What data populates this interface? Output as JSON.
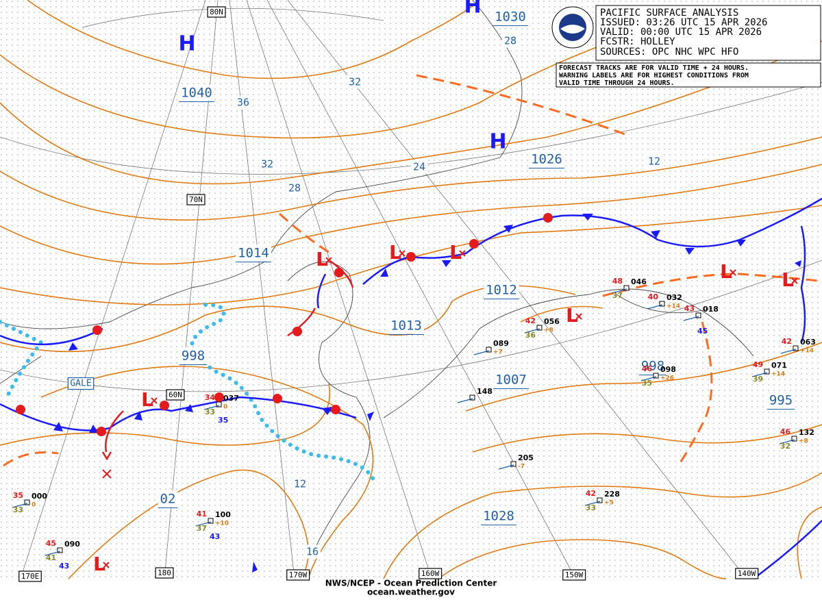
{
  "header": {
    "title": "PACIFIC SURFACE ANALYSIS",
    "issued": "ISSUED: 03:26 UTC 15 APR 2026",
    "valid": "VALID:  00:00 UTC 15 APR 2026",
    "forecaster": "FCSTR:  HOLLEY",
    "sources": "SOURCES: OPC NHC WPC HFO"
  },
  "note": [
    "FORECAST TRACKS ARE FOR VALID TIME + 24 HOURS.",
    "WARNING LABELS ARE FOR HIGHEST CONDITIONS FROM",
    "VALID TIME THROUGH 24 HOURS."
  ],
  "pressure_labels": [
    "1030",
    "1040",
    "1026",
    "1014",
    "1012",
    "1013",
    "998",
    "1007",
    "998",
    "995",
    "02",
    "1028"
  ],
  "highs": [
    "H",
    "H",
    "H"
  ],
  "lows": [
    "L",
    "L",
    "L",
    "L",
    "L",
    "L",
    "L",
    "L"
  ],
  "isobar_labels": [
    "36",
    "32",
    "32",
    "28",
    "24",
    "12",
    "28",
    "12",
    "16"
  ],
  "grid_labels": [
    "80N",
    "70N",
    "60N",
    "170E",
    "180",
    "170W",
    "160W",
    "150W",
    "140W"
  ],
  "warnings": [
    "GALE"
  ],
  "stations": [
    {
      "pressure": "000",
      "temp": "35",
      "dew": "33",
      "tendency": "0"
    },
    {
      "pressure": "090",
      "temp": "45",
      "dew": "41",
      "wind": "43"
    },
    {
      "pressure": "100",
      "temp": "41",
      "dew": "37",
      "tendency": "+10",
      "wind": "43"
    },
    {
      "pressure": "037",
      "temp": "34",
      "dew": "33",
      "tendency": "0",
      "wind": "35"
    },
    {
      "pressure": "056",
      "temp": "42",
      "dew": "36",
      "tendency": "+8"
    },
    {
      "pressure": "089",
      "tendency": "+7"
    },
    {
      "pressure": "148"
    },
    {
      "pressure": "205",
      "tendency": "-7"
    },
    {
      "pressure": "228",
      "temp": "42",
      "dew": "33",
      "tendency": "+5"
    },
    {
      "pressure": "098",
      "temp": "46",
      "dew": "35",
      "tendency": "+26"
    },
    {
      "pressure": "071",
      "temp": "49",
      "dew": "39",
      "tendency": "+14"
    },
    {
      "pressure": "132",
      "temp": "46",
      "dew": "32",
      "tendency": "+8"
    },
    {
      "pressure": "063",
      "temp": "42",
      "tendency": "+14"
    },
    {
      "pressure": "032",
      "temp": "40",
      "tendency": "+14"
    },
    {
      "pressure": "018",
      "temp": "43",
      "wind": "45"
    },
    {
      "pressure": "046",
      "temp": "48",
      "dew": "37"
    }
  ],
  "footer": [
    "NWS/NCEP - Ocean Prediction Center",
    "ocean.weather.gov"
  ]
}
